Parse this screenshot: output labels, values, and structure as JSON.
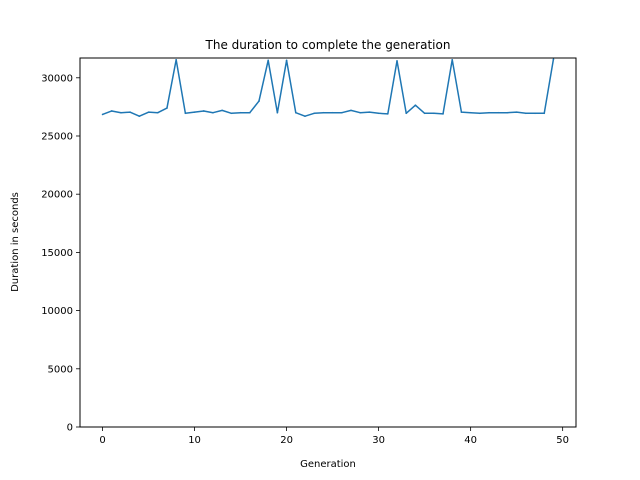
{
  "chart_data": {
    "type": "line",
    "title": "The duration to complete the generation",
    "xlabel": "Generation",
    "ylabel": "Duration in seconds",
    "xlim": [
      -2.45,
      51.45
    ],
    "ylim": [
      0,
      31700
    ],
    "xticks": [
      0,
      10,
      20,
      30,
      40,
      50
    ],
    "yticks": [
      0,
      5000,
      10000,
      15000,
      20000,
      25000,
      30000
    ],
    "grid": false,
    "line_color": "#1f77b4",
    "series": [
      {
        "x": [
          0,
          1,
          2,
          3,
          4,
          5,
          6,
          7,
          8,
          9,
          10,
          11,
          12,
          13,
          14,
          15,
          16,
          17,
          18,
          19,
          20,
          21,
          22,
          23,
          24,
          25,
          26,
          27,
          28,
          29,
          30,
          31,
          32,
          33,
          34,
          35,
          36,
          37,
          38,
          39,
          40,
          41,
          42,
          43,
          44,
          45,
          46,
          47,
          48,
          49
        ],
        "values": [
          26850,
          27150,
          27000,
          27050,
          26700,
          27050,
          27000,
          27400,
          31550,
          26950,
          27050,
          27150,
          27000,
          27200,
          26950,
          27000,
          27000,
          28000,
          31500,
          27000,
          31500,
          27000,
          26700,
          26950,
          27000,
          27000,
          27000,
          27200,
          27000,
          27050,
          26950,
          26900,
          31450,
          26950,
          27650,
          26950,
          26950,
          26900,
          31550,
          27050,
          27000,
          26950,
          27000,
          27000,
          27000,
          27050,
          26950,
          26950,
          26950,
          31600
        ]
      }
    ]
  }
}
